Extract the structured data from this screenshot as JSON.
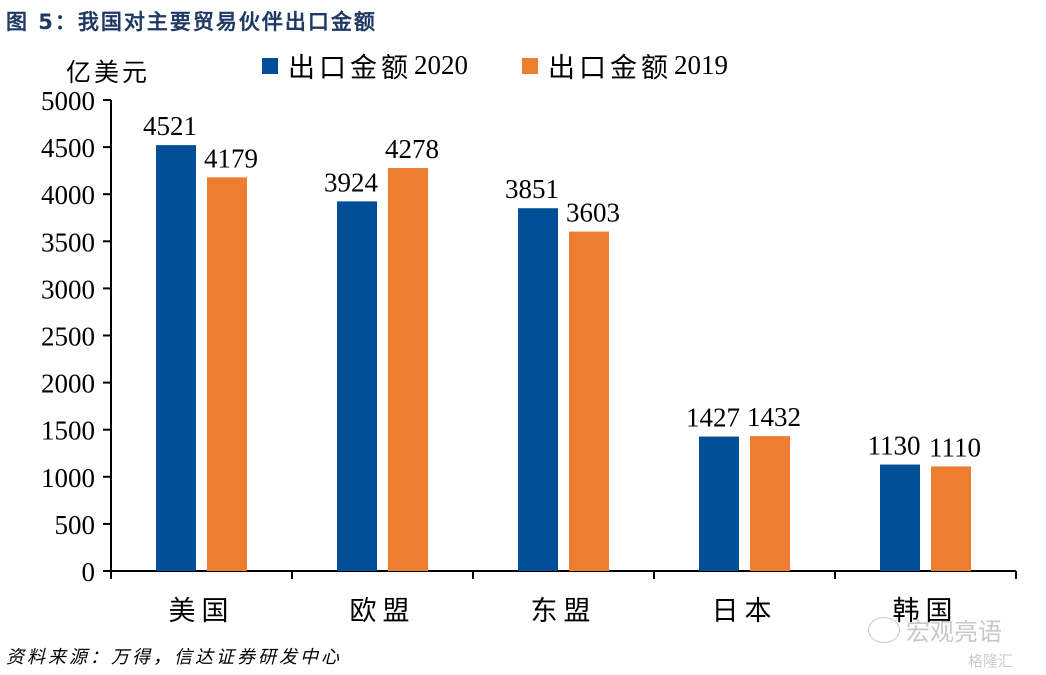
{
  "title": "图 5：我国对主要贸易伙伴出口金额",
  "source": "资料来源：万得，信达证券研发中心",
  "watermark": "宏观亮语",
  "watermark2": "格隆汇",
  "chart_data": {
    "type": "bar",
    "title": "我国对主要贸易伙伴出口金额",
    "ylabel": "亿美元",
    "xlabel": "",
    "ylim": [
      0,
      5000
    ],
    "yticks": [
      0,
      500,
      1000,
      1500,
      2000,
      2500,
      3000,
      3500,
      4000,
      4500,
      5000
    ],
    "grid": false,
    "legend_position": "top",
    "categories": [
      "美国",
      "欧盟",
      "东盟",
      "日本",
      "韩国"
    ],
    "series": [
      {
        "name": "出口金额 2020",
        "label": "出口金额",
        "year": "2020",
        "color": "#004f96",
        "values": [
          4521,
          3924,
          3851,
          1427,
          1130
        ]
      },
      {
        "name": "出口金额 2019",
        "label": "出口金额",
        "year": "2019",
        "color": "#ed7d31",
        "values": [
          4179,
          4278,
          3603,
          1432,
          1110
        ]
      }
    ]
  }
}
